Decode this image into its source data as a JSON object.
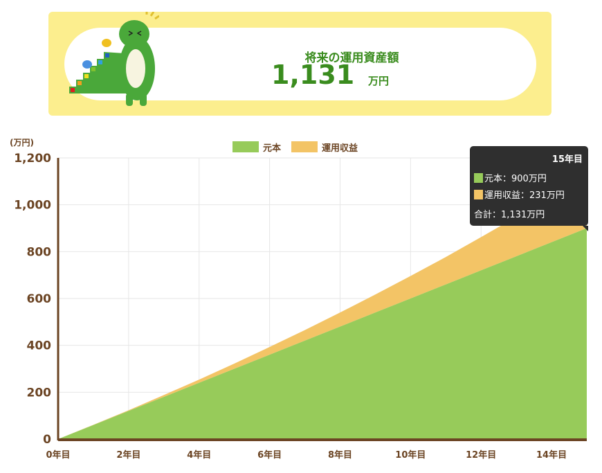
{
  "banner": {
    "title": "将来の運用資産額",
    "value": "1,131",
    "unit": "万円"
  },
  "colors": {
    "principal": "#97cb5a",
    "profit": "#f3c466",
    "axis": "#6b4423",
    "brand_green": "#3a8c1e",
    "banner_bg": "#fcee8e"
  },
  "chart_data": {
    "type": "area",
    "stacked": true,
    "ylabel": "(万円)",
    "ylim": [
      0,
      1200
    ],
    "grid": true,
    "legend": "top",
    "yticks": [
      "0",
      "200",
      "400",
      "600",
      "800",
      "1,000",
      "1,200"
    ],
    "x": [
      0,
      1,
      2,
      3,
      4,
      5,
      6,
      7,
      8,
      9,
      10,
      11,
      12,
      13,
      14,
      15
    ],
    "xticks": [
      "0年目",
      "2年目",
      "4年目",
      "6年目",
      "8年目",
      "10年目",
      "12年目",
      "14年目"
    ],
    "series": [
      {
        "name": "元本",
        "values": [
          0,
          60,
          120,
          180,
          240,
          300,
          360,
          420,
          480,
          540,
          600,
          660,
          720,
          780,
          840,
          900
        ]
      },
      {
        "name": "運用収益",
        "values": [
          0,
          1,
          3,
          8,
          14,
          22,
          33,
          45,
          60,
          77,
          96,
          117,
          142,
          168,
          197,
          231
        ]
      }
    ]
  },
  "tooltip": {
    "title": "15年目",
    "principal": "元本：900万円",
    "profit": "運用収益：231万円",
    "total": "合計：1,131万円"
  }
}
